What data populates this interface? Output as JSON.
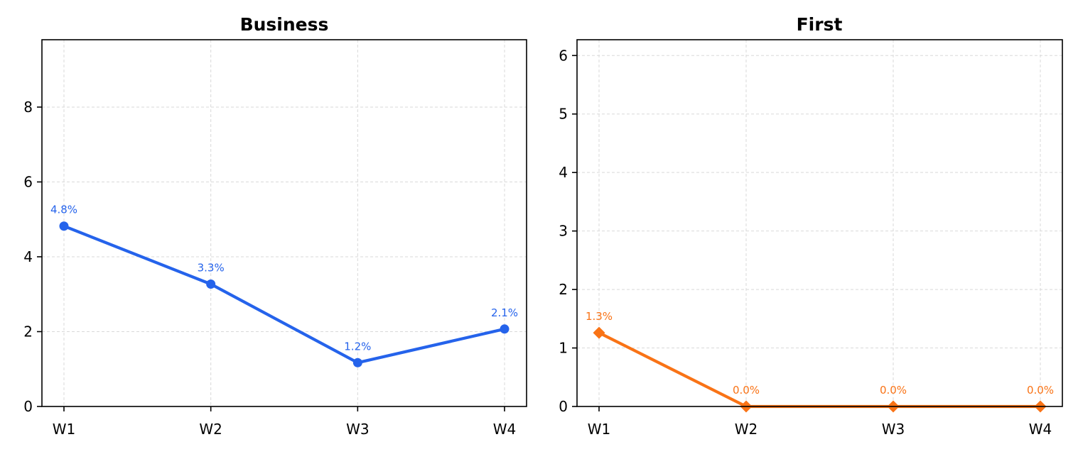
{
  "chart_data": [
    {
      "type": "line",
      "title": "Business",
      "xlabel": "",
      "ylabel": "",
      "categories": [
        "W1",
        "W2",
        "W3",
        "W4"
      ],
      "series": [
        {
          "name": "Business",
          "values": [
            4.82,
            3.27,
            1.17,
            2.07
          ],
          "labels": [
            "4.8%",
            "3.3%",
            "1.2%",
            "2.1%"
          ],
          "color": "#2563eb",
          "marker": "circle"
        }
      ],
      "ylim": [
        0,
        9.8
      ],
      "yticks": [
        0,
        2,
        4,
        6,
        8
      ],
      "ytick_labels": [
        "0",
        "2",
        "4",
        "6",
        "8"
      ],
      "grid": true
    },
    {
      "type": "line",
      "title": "First",
      "xlabel": "",
      "ylabel": "",
      "categories": [
        "W1",
        "W2",
        "W3",
        "W4"
      ],
      "series": [
        {
          "name": "First",
          "values": [
            1.26,
            0.0,
            0.0,
            0.0
          ],
          "labels": [
            "1.3%",
            "0.0%",
            "0.0%",
            "0.0%"
          ],
          "color": "#f97316",
          "marker": "diamond"
        }
      ],
      "ylim": [
        0,
        6.27
      ],
      "yticks": [
        0,
        1,
        2,
        3,
        4,
        5,
        6
      ],
      "ytick_labels": [
        "0",
        "1",
        "2",
        "3",
        "4",
        "5",
        "6"
      ],
      "grid": true
    }
  ]
}
